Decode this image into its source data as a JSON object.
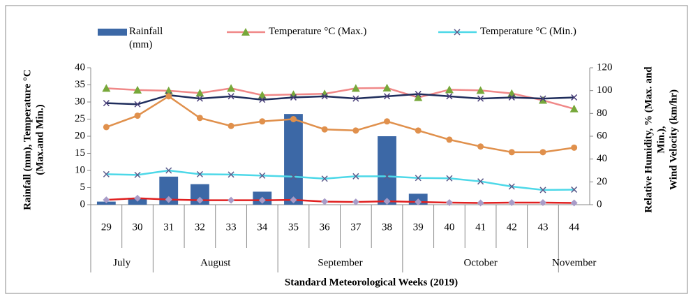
{
  "chart_data": {
    "type": "combo",
    "x_label": "Standard Meteorological Weeks (2019)",
    "y_label": [
      "Rainfall (mm), Temperature °C",
      "(Max.and Min.)"
    ],
    "y2_label": [
      "Relative Humidity, % (Max. and",
      "Min.),",
      "Wind Velocity (km/hr)"
    ],
    "categories": [
      "29",
      "30",
      "31",
      "32",
      "33",
      "34",
      "35",
      "36",
      "37",
      "38",
      "39",
      "40",
      "41",
      "42",
      "43",
      "44"
    ],
    "months": [
      "July",
      null,
      "August",
      null,
      null,
      null,
      "September",
      null,
      null,
      null,
      "October",
      null,
      null,
      null,
      null,
      "November"
    ],
    "ylim": [
      0,
      40
    ],
    "yticks": [
      0,
      5,
      10,
      15,
      20,
      25,
      30,
      35,
      40
    ],
    "y2lim": [
      0,
      120
    ],
    "y2ticks": [
      0,
      20,
      40,
      60,
      80,
      100,
      120
    ],
    "series": [
      {
        "name": "Rainfall (mm)",
        "type": "bar",
        "color": "#3c68a6",
        "values": [
          0.9,
          2.0,
          8.2,
          6.0,
          0,
          3.8,
          26.5,
          0,
          0,
          20.0,
          3.2,
          0,
          0,
          0,
          0,
          0
        ]
      },
      {
        "name": "Temperature °C (Max.)",
        "type": "line",
        "color": "#f08888",
        "marker": "triangle",
        "marker_color": "#77a83a",
        "values": [
          34.0,
          33.5,
          33.3,
          32.6,
          34.0,
          32.0,
          32.2,
          32.4,
          34.0,
          34.1,
          31.3,
          33.6,
          33.4,
          32.5,
          30.5,
          28.0
        ]
      },
      {
        "name": "Temperature °C (Min.)",
        "type": "line",
        "color": "#4dd8e8",
        "marker": "x",
        "marker_color": "#5a5a8a",
        "values": [
          8.9,
          8.7,
          10.0,
          8.9,
          8.8,
          8.5,
          8.2,
          7.6,
          8.3,
          8.3,
          7.8,
          7.7,
          6.8,
          5.3,
          4.3,
          4.4
        ]
      },
      {
        "type": "line",
        "axis": "y2",
        "color": "#1f2d5c",
        "marker": "x",
        "marker_color": "#4a3f7a",
        "values": [
          89,
          88,
          96,
          93,
          95,
          92,
          94,
          95,
          93,
          95,
          97,
          95,
          93,
          94,
          93,
          94
        ]
      },
      {
        "type": "line",
        "axis": "y2",
        "color": "#e0904c",
        "marker": "circle",
        "marker_color": "#e0904c",
        "values": [
          68,
          78,
          95,
          76,
          69,
          73,
          75,
          66,
          65,
          73,
          65,
          57,
          51,
          46,
          46,
          50
        ]
      },
      {
        "type": "line",
        "axis": "y2",
        "color": "#e02020",
        "marker": "diamond",
        "marker_color": "#a89cc8",
        "values": [
          4.2,
          5.7,
          4.5,
          3.9,
          3.9,
          3.9,
          4.2,
          2.7,
          2.4,
          3.0,
          2.4,
          1.8,
          1.5,
          1.8,
          1.8,
          1.5
        ]
      }
    ]
  }
}
